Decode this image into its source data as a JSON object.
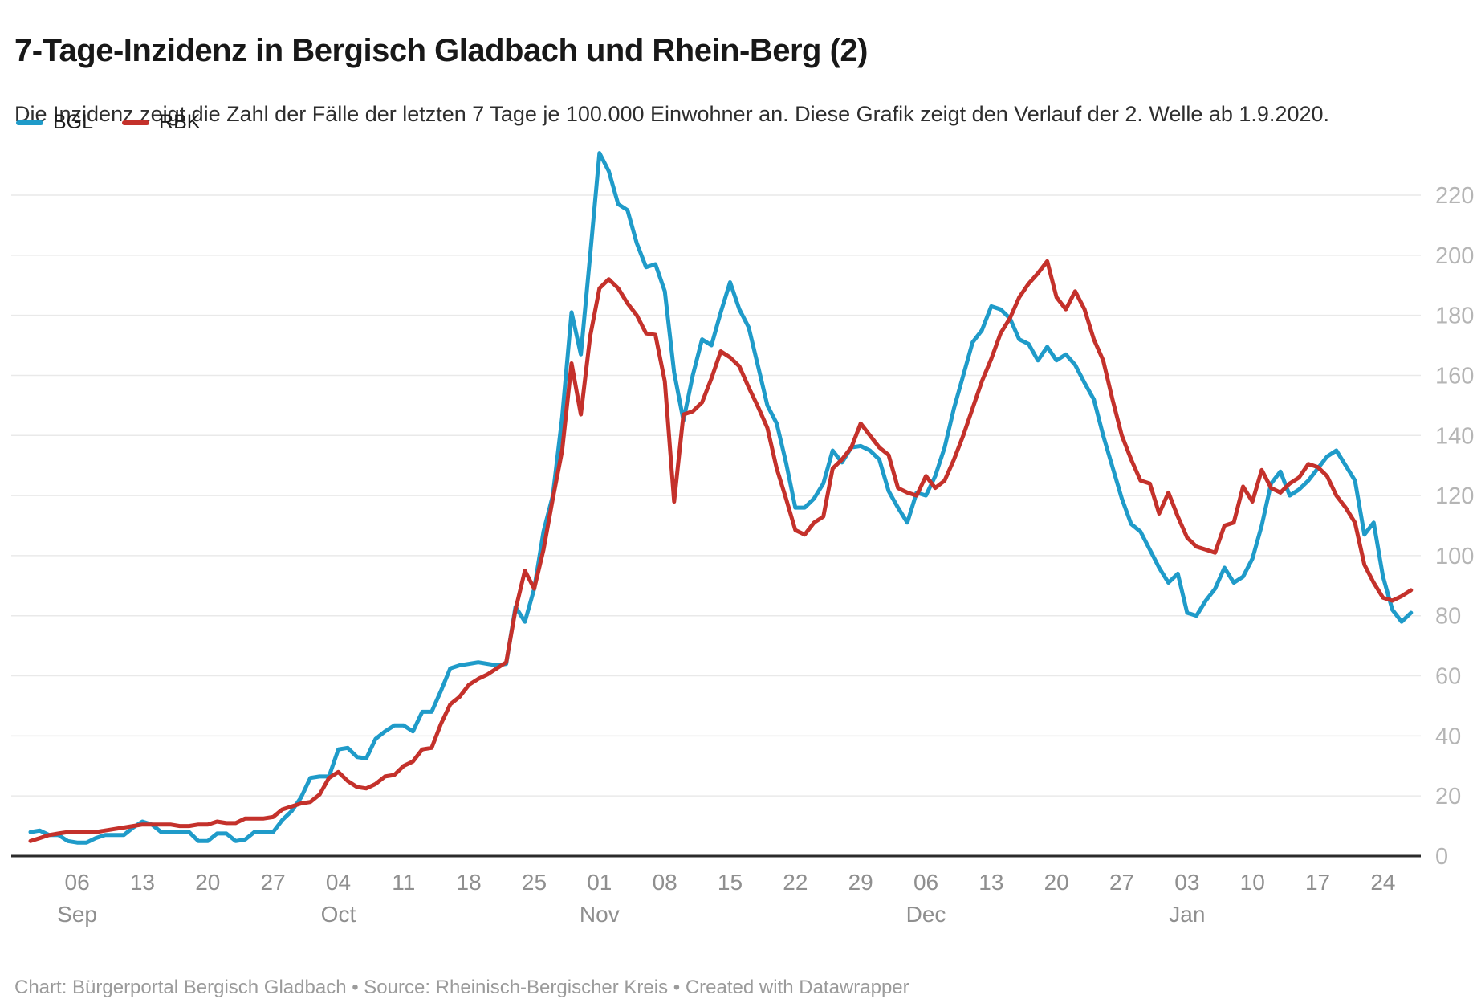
{
  "header": {
    "title": "7-Tage-Inzidenz in Bergisch Gladbach und Rhein-Berg (2)",
    "subtitle": "Die Inzidenz zeigt die Zahl der Fälle der letzten 7 Tage je 100.000 Einwohner an. Diese Grafik zeigt den Verlauf der 2. Welle ab 1.9.2020."
  },
  "footer": {
    "credit": "Chart: Bürgerportal Bergisch Gladbach • Source: Rheinisch-Bergischer Kreis • Created with Datawrapper"
  },
  "legend": {
    "items": [
      {
        "label": "BGL",
        "color": "#1f9bc9"
      },
      {
        "label": "RBK",
        "color": "#c4312b"
      }
    ]
  },
  "chart_data": {
    "type": "line",
    "title": "7-Tage-Inzidenz in Bergisch Gladbach und Rhein-Berg (2)",
    "xlabel": "",
    "ylabel": "",
    "x_start": "2020-09-01",
    "x_end": "2021-01-27",
    "x_unit": "day",
    "ylim": [
      0,
      237
    ],
    "grid": true,
    "legend_position": "top-left",
    "y_ticks": [
      0,
      20,
      40,
      60,
      80,
      100,
      120,
      140,
      160,
      180,
      200,
      220
    ],
    "x_ticks": [
      {
        "day_index": 5,
        "label": "06",
        "month": "Sep"
      },
      {
        "day_index": 12,
        "label": "13",
        "month": ""
      },
      {
        "day_index": 19,
        "label": "20",
        "month": ""
      },
      {
        "day_index": 26,
        "label": "27",
        "month": ""
      },
      {
        "day_index": 33,
        "label": "04",
        "month": "Oct"
      },
      {
        "day_index": 40,
        "label": "11",
        "month": ""
      },
      {
        "day_index": 47,
        "label": "18",
        "month": ""
      },
      {
        "day_index": 54,
        "label": "25",
        "month": ""
      },
      {
        "day_index": 61,
        "label": "01",
        "month": "Nov"
      },
      {
        "day_index": 68,
        "label": "08",
        "month": ""
      },
      {
        "day_index": 75,
        "label": "15",
        "month": ""
      },
      {
        "day_index": 82,
        "label": "22",
        "month": ""
      },
      {
        "day_index": 89,
        "label": "29",
        "month": ""
      },
      {
        "day_index": 96,
        "label": "06",
        "month": "Dec"
      },
      {
        "day_index": 103,
        "label": "13",
        "month": ""
      },
      {
        "day_index": 110,
        "label": "20",
        "month": ""
      },
      {
        "day_index": 117,
        "label": "27",
        "month": ""
      },
      {
        "day_index": 124,
        "label": "03",
        "month": "Jan"
      },
      {
        "day_index": 131,
        "label": "10",
        "month": ""
      },
      {
        "day_index": 138,
        "label": "17",
        "month": ""
      },
      {
        "day_index": 145,
        "label": "24",
        "month": ""
      }
    ],
    "series": [
      {
        "name": "BGL",
        "color": "#1f9bc9",
        "values": [
          8,
          8.5,
          7,
          7,
          5,
          4.5,
          4.5,
          6,
          7,
          7,
          7,
          9.5,
          11.5,
          10.5,
          8,
          8,
          8,
          8,
          5,
          5,
          7.5,
          7.5,
          5,
          5.5,
          8,
          8,
          8,
          12,
          15,
          19.5,
          26,
          26.5,
          26.5,
          35.5,
          36,
          33,
          32.5,
          39,
          41.5,
          43.5,
          43.5,
          41.5,
          48,
          48,
          55,
          62.5,
          63.5,
          64,
          64.5,
          64,
          63.5,
          64,
          83,
          78,
          89,
          108,
          120,
          146,
          181,
          167,
          200,
          234,
          228,
          217,
          215,
          204,
          196,
          197,
          188,
          161,
          145,
          160,
          172,
          170,
          181,
          191,
          182,
          176,
          163,
          150,
          144,
          131,
          116,
          116,
          119,
          124,
          135,
          131,
          136,
          136.5,
          135,
          132,
          121.5,
          116,
          111,
          121,
          120,
          126.5,
          136,
          149,
          160,
          171,
          175,
          183,
          182,
          179,
          172,
          170.5,
          165,
          169.5,
          165,
          167,
          163.5,
          157.5,
          152,
          140,
          129.5,
          119,
          110.5,
          108,
          102,
          96,
          91,
          94,
          81,
          80,
          85,
          89,
          96,
          91,
          93,
          99,
          110,
          124,
          128,
          120,
          122,
          125,
          129,
          133,
          135,
          130,
          125,
          107,
          111,
          93,
          82,
          78,
          81
        ]
      },
      {
        "name": "RBK",
        "color": "#c4312b",
        "values": [
          5,
          6,
          7,
          7.5,
          8,
          8,
          8,
          8,
          8.5,
          9,
          9.5,
          10,
          10.5,
          10.5,
          10.5,
          10.5,
          10,
          10,
          10.5,
          10.5,
          11.5,
          11,
          11,
          12.5,
          12.5,
          12.5,
          13,
          15.5,
          16.5,
          17.5,
          18,
          20.5,
          26,
          28,
          25,
          23,
          22.5,
          24,
          26.5,
          27,
          30,
          31.5,
          35.5,
          36,
          44,
          50.5,
          53,
          57,
          59,
          60.5,
          62.5,
          64.5,
          82,
          95,
          89,
          102,
          119,
          135,
          164,
          147,
          173,
          189,
          192,
          189,
          184,
          180,
          174,
          173.5,
          158,
          118,
          147,
          148,
          151,
          159,
          168,
          166,
          163,
          156,
          149.5,
          142.5,
          129,
          119,
          108.5,
          107,
          111,
          113,
          129,
          132,
          136,
          144,
          140,
          136,
          133.5,
          122.5,
          121,
          120,
          126.5,
          122.5,
          125,
          132,
          140,
          149,
          158,
          165.5,
          174,
          179,
          186,
          190.5,
          194,
          198,
          186,
          182,
          188,
          182,
          172,
          165,
          152,
          140,
          132,
          125,
          124,
          114,
          121,
          113,
          106,
          103,
          102,
          101,
          110,
          111,
          123,
          118,
          128.5,
          122.5,
          121,
          124,
          126,
          130.5,
          129.5,
          126.5,
          120,
          116,
          111,
          97,
          91,
          86,
          85,
          86.5,
          88.5
        ]
      }
    ]
  },
  "layout_colors": {
    "grid": "#e9e9e9",
    "baseline": "#2b2b2b",
    "y_label": "#b5b5b5",
    "x_label": "#8f8f8f"
  }
}
